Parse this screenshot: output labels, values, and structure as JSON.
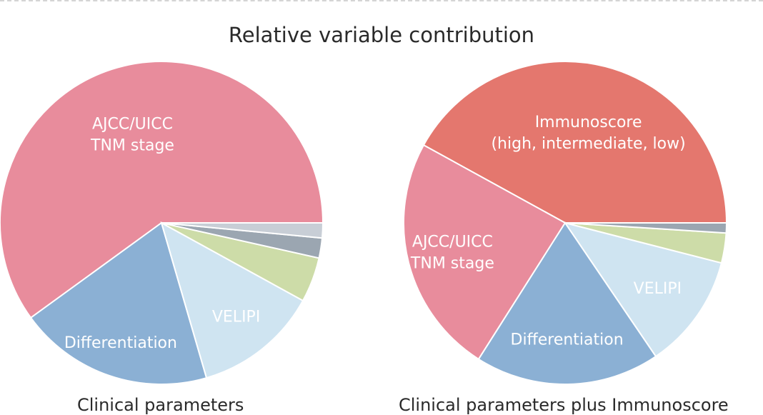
{
  "title": "Relative variable contribution",
  "chart_data": [
    {
      "type": "pie",
      "caption": "Clinical parameters",
      "slices": [
        {
          "label": [
            "AJCC/UICC",
            "TNM stage"
          ],
          "value": 60.0,
          "color": "#e88c9c"
        },
        {
          "label": [
            "Differentiation"
          ],
          "value": 19.5,
          "color": "#8bb0d4"
        },
        {
          "label": [
            "VELIPI"
          ],
          "value": 12.5,
          "color": "#cfe4f1"
        },
        {
          "label": [],
          "value": 4.5,
          "color": "#cddca8"
        },
        {
          "label": [],
          "value": 2.0,
          "color": "#9ba6b1"
        },
        {
          "label": [],
          "value": 1.5,
          "color": "#c8ced6"
        }
      ]
    },
    {
      "type": "pie",
      "caption": "Clinical parameters plus Immunoscore",
      "slices": [
        {
          "label": [
            "Immunoscore",
            "(high, intermediate, low)"
          ],
          "value": 42.0,
          "color": "#e4776e"
        },
        {
          "label": [
            "AJCC/UICC",
            "TNM stage"
          ],
          "value": 24.0,
          "color": "#e88c9c"
        },
        {
          "label": [
            "Differentiation"
          ],
          "value": 18.5,
          "color": "#8bb0d4"
        },
        {
          "label": [
            "VELIPI"
          ],
          "value": 11.5,
          "color": "#cfe4f1"
        },
        {
          "label": [],
          "value": 3.0,
          "color": "#cddca8"
        },
        {
          "label": [],
          "value": 1.0,
          "color": "#9ba6b1"
        }
      ]
    }
  ]
}
